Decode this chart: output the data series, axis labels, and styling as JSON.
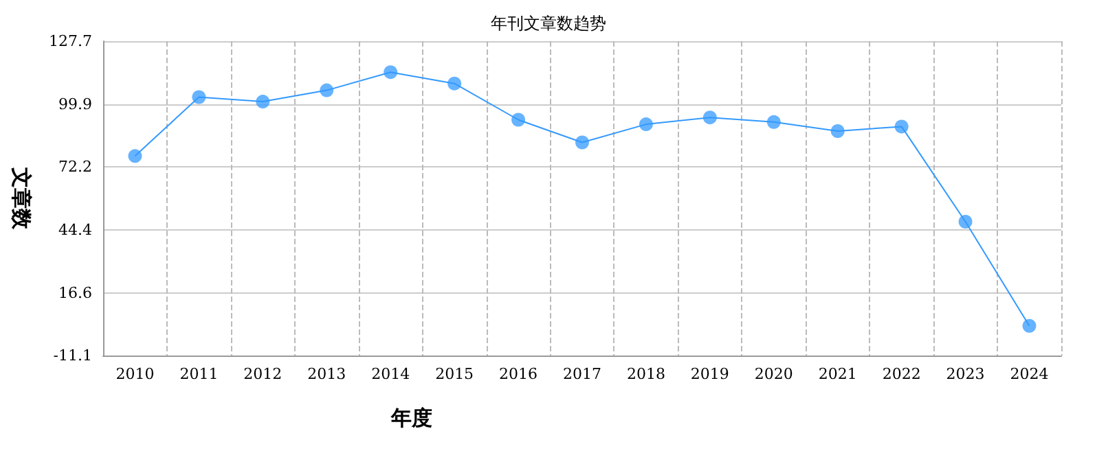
{
  "chart_data": {
    "type": "line",
    "title": "年刊文章数趋势",
    "xlabel": "年度",
    "ylabel": "文章数",
    "categories": [
      "2010",
      "2011",
      "2012",
      "2013",
      "2014",
      "2015",
      "2016",
      "2017",
      "2018",
      "2019",
      "2020",
      "2021",
      "2022",
      "2023",
      "2024"
    ],
    "series": [
      {
        "color": "#3399ff",
        "values": [
          77,
          103,
          101,
          106,
          114,
          109,
          93,
          83,
          91,
          94,
          92,
          88,
          90,
          48,
          2
        ]
      }
    ],
    "ylim": [
      -11.1,
      127.7
    ],
    "yticks": [
      -11.1,
      16.6,
      44.4,
      72.2,
      99.9,
      127.7
    ],
    "grid": true,
    "marker": "circle",
    "line_style": "solid"
  }
}
